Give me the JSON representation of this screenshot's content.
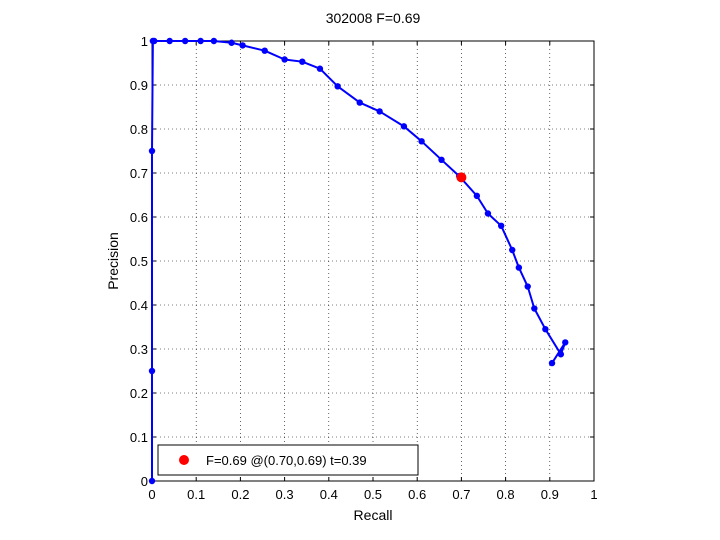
{
  "chart_data": {
    "type": "line",
    "title": "302008 F=0.69",
    "xlabel": "Recall",
    "ylabel": "Precision",
    "xlim": [
      0,
      1
    ],
    "ylim": [
      0,
      1
    ],
    "grid": true,
    "xticks": [
      "0",
      "0.1",
      "0.2",
      "0.3",
      "0.4",
      "0.5",
      "0.6",
      "0.7",
      "0.8",
      "0.9",
      "1"
    ],
    "yticks": [
      "0",
      "0.1",
      "0.2",
      "0.3",
      "0.4",
      "0.5",
      "0.6",
      "0.7",
      "0.8",
      "0.9",
      "1"
    ],
    "series": [
      {
        "color": "#0000ff",
        "x": [
          0.0,
          0.0,
          0.0,
          0.002,
          0.005,
          0.04,
          0.075,
          0.11,
          0.14,
          0.18,
          0.205,
          0.255,
          0.3,
          0.34,
          0.38,
          0.42,
          0.47,
          0.515,
          0.57,
          0.61,
          0.655,
          0.695,
          0.735,
          0.76,
          0.79,
          0.815,
          0.83,
          0.85,
          0.865,
          0.89,
          0.925,
          0.935,
          0.905
        ],
        "y": [
          0.0,
          0.25,
          0.75,
          1.0,
          1.0,
          1.0,
          1.0,
          1.0,
          1.0,
          0.996,
          0.99,
          0.978,
          0.958,
          0.953,
          0.937,
          0.897,
          0.86,
          0.84,
          0.806,
          0.772,
          0.73,
          0.693,
          0.648,
          0.608,
          0.58,
          0.525,
          0.485,
          0.442,
          0.392,
          0.345,
          0.288,
          0.315,
          0.268
        ]
      }
    ],
    "highlight": {
      "x": 0.7,
      "y": 0.69,
      "color": "#ff0000",
      "label": "F=0.69 @(0.70,0.69) t=0.39"
    },
    "legend_placement": "bottom-left"
  }
}
